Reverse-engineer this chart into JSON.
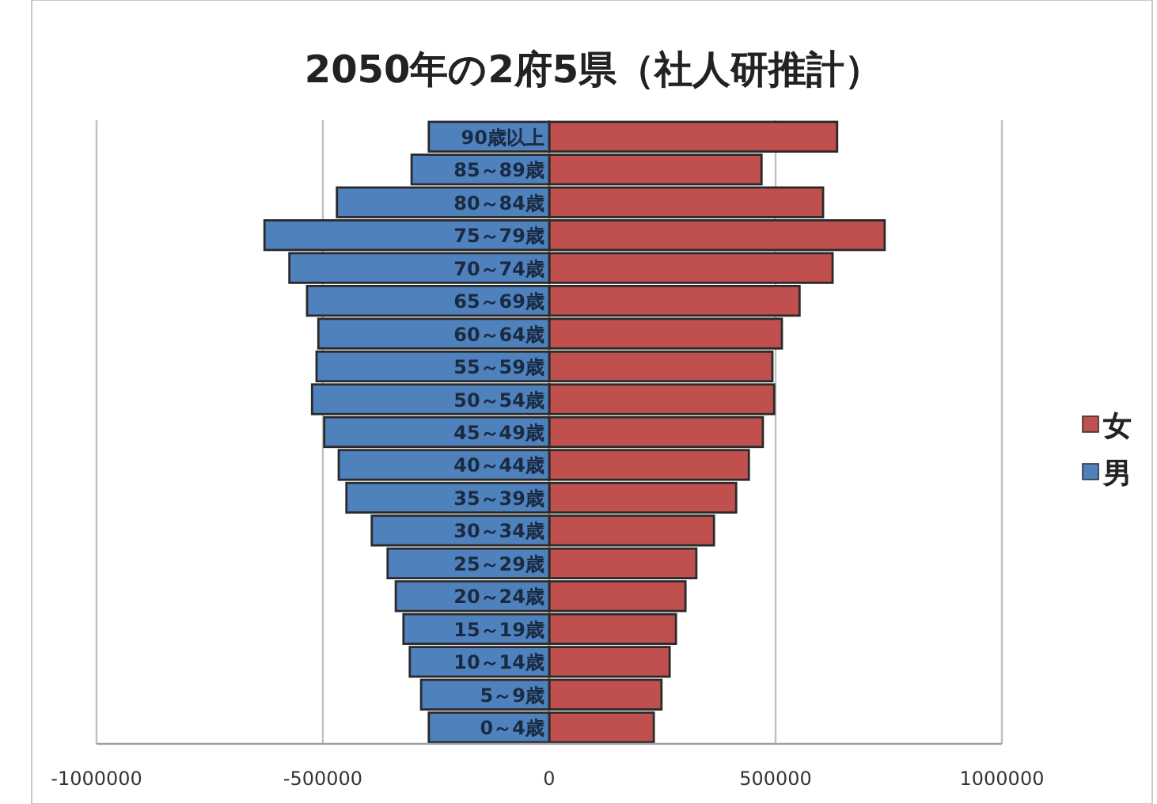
{
  "chart_data": {
    "type": "bar",
    "orientation": "horizontal",
    "title": "2050年の2府5県（社人研推計）",
    "categories": [
      "90歳以上",
      "85～89歳",
      "80～84歳",
      "75～79歳",
      "70～74歳",
      "65～69歳",
      "60～64歳",
      "55～59歳",
      "50～54歳",
      "45～49歳",
      "40～44歳",
      "35～39歳",
      "30～34歳",
      "25～29歳",
      "20～24歳",
      "15～19歳",
      "10～14歳",
      "5～9歳",
      "0～4歳"
    ],
    "series": [
      {
        "name": "女",
        "color": "#c0504d",
        "values": [
          636000,
          469000,
          605000,
          741000,
          626000,
          553000,
          514000,
          493000,
          497000,
          472000,
          441000,
          413000,
          364000,
          325000,
          301000,
          280000,
          266000,
          248000,
          231000
        ]
      },
      {
        "name": "男",
        "color": "#4f81bd",
        "values": [
          -266000,
          -304000,
          -469000,
          -629000,
          -574000,
          -535000,
          -510000,
          -514000,
          -524000,
          -497000,
          -465000,
          -448000,
          -392000,
          -357000,
          -339000,
          -322000,
          -308000,
          -283000,
          -266000
        ]
      }
    ],
    "xlim": [
      -1000000,
      1000000
    ],
    "xticks": [
      -1000000,
      -500000,
      0,
      500000,
      1000000
    ],
    "grid": "x",
    "legend": "right",
    "stacked": true
  }
}
